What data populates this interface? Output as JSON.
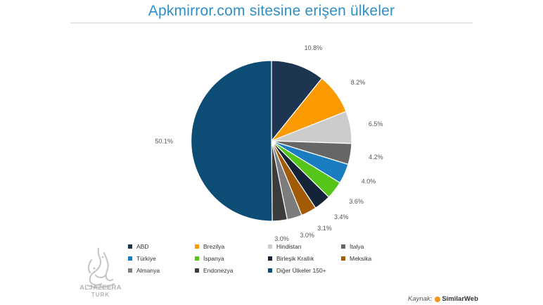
{
  "title": "Apkmirror.com sitesine erişen ülkeler",
  "chart_data": {
    "type": "pie",
    "title": "Apkmirror.com sitesine erişen ülkeler",
    "start_angle_deg": 0,
    "direction": "clockwise",
    "slices": [
      {
        "name": "ABD",
        "value": 10.8,
        "label": "10.8%",
        "color": "#1e3552"
      },
      {
        "name": "Brezilya",
        "value": 8.2,
        "label": "8.2%",
        "color": "#fb9900"
      },
      {
        "name": "Hindistan",
        "value": 6.5,
        "label": "6.5%",
        "color": "#cccccc"
      },
      {
        "name": "İtalya",
        "value": 4.2,
        "label": "4.2%",
        "color": "#666666"
      },
      {
        "name": "Türkiye",
        "value": 4.0,
        "label": "4.0%",
        "color": "#1a7cc1"
      },
      {
        "name": "İspanya",
        "value": 3.6,
        "label": "3.6%",
        "color": "#55c51a"
      },
      {
        "name": "Birleşik Krallık",
        "value": 3.4,
        "label": "3.4%",
        "color": "#152338"
      },
      {
        "name": "Meksika",
        "value": 3.1,
        "label": "3.1%",
        "color": "#a35a05"
      },
      {
        "name": "Almanya",
        "value": 3.0,
        "label": "3.0%",
        "color": "#7d7d7d"
      },
      {
        "name": "Endonezya",
        "value": 3.0,
        "label": "3.0%",
        "color": "#3c3c3c"
      },
      {
        "name": "Diğer Ülkeler 150+",
        "value": 50.1,
        "label": "50.1%",
        "color": "#0c4c75"
      }
    ],
    "legend_position": "bottom"
  },
  "branding": {
    "logo_line1": "ALJAZEERA",
    "logo_line2": "TURK",
    "logo_icon": "aljazeera-calligraphy-icon"
  },
  "source": {
    "label": "Kaynak:",
    "brand": "SimilarWeb",
    "brand_icon": "similarweb-icon",
    "brand_icon_color": "#f7941d"
  }
}
